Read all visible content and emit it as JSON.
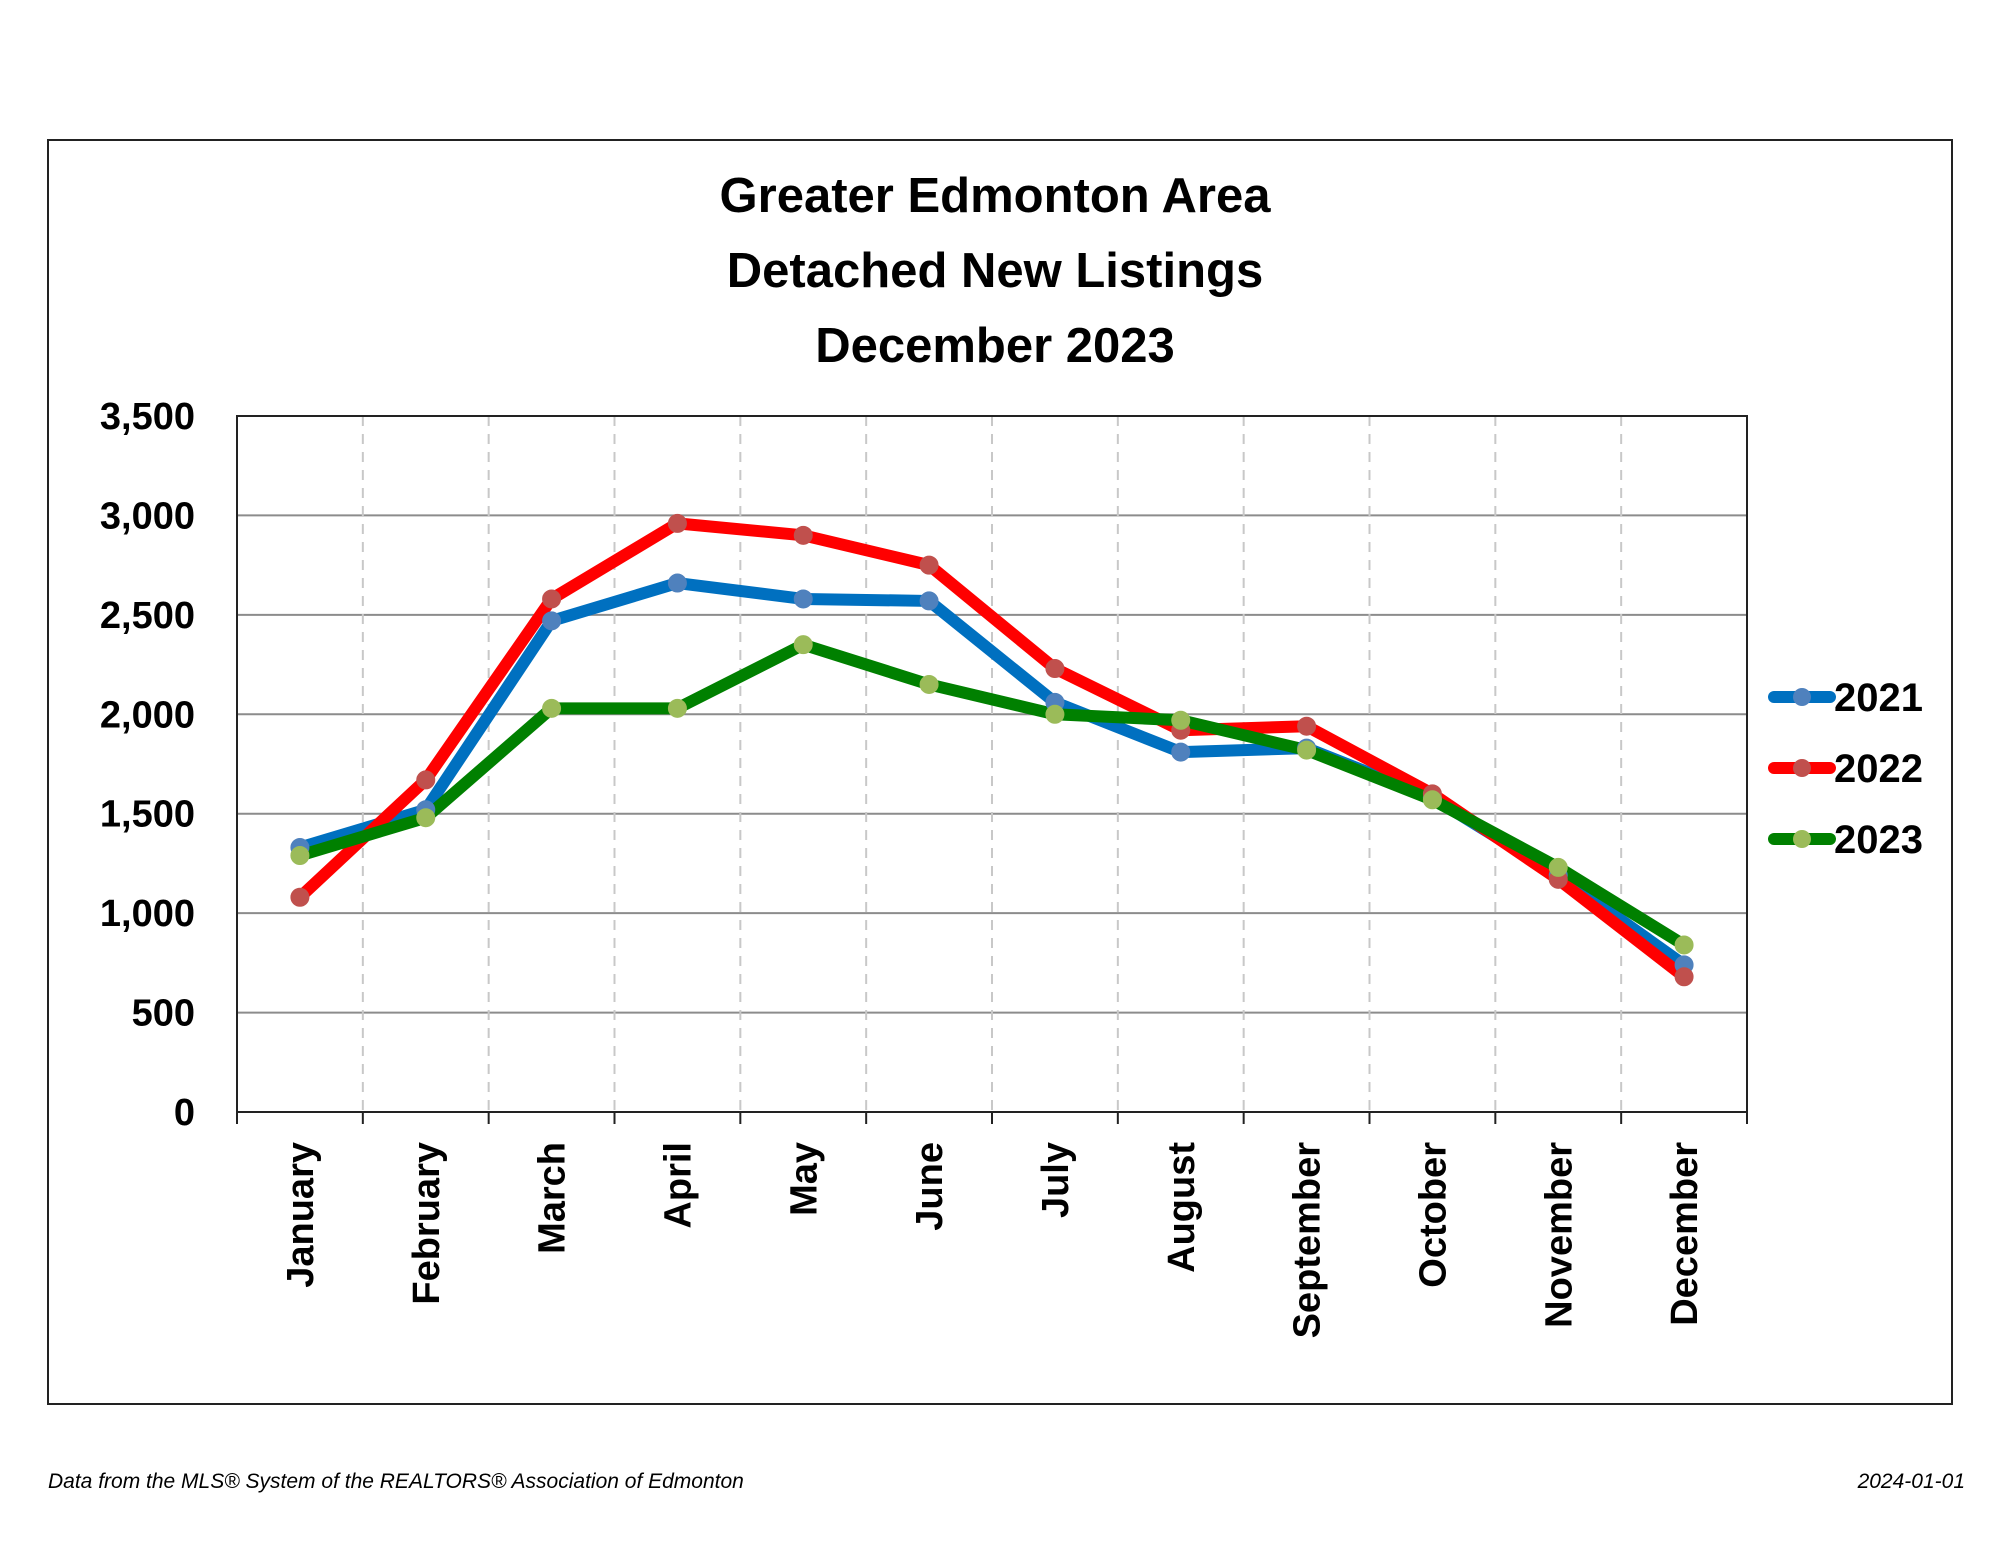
{
  "chart_data": {
    "type": "line",
    "title": "Greater Edmonton Area\nDetached New Listings\nDecember 2023",
    "title_lines": [
      "Greater Edmonton Area",
      "Detached New Listings",
      "December 2023"
    ],
    "categories": [
      "January",
      "February",
      "March",
      "April",
      "May",
      "June",
      "July",
      "August",
      "September",
      "October",
      "November",
      "December"
    ],
    "ylim": [
      0,
      3500
    ],
    "yticks": [
      0,
      500,
      1000,
      1500,
      2000,
      2500,
      3000,
      3500
    ],
    "ytick_labels": [
      "0",
      "500",
      "1,000",
      "1,500",
      "2,000",
      "2,500",
      "3,000",
      "3,500"
    ],
    "grid": true,
    "legend": "right",
    "series": [
      {
        "name": "2021",
        "color": "#0070C0",
        "marker_color": "#4F81BD",
        "values": [
          1330,
          1520,
          2470,
          2660,
          2580,
          2570,
          2060,
          1810,
          1830,
          1580,
          1190,
          740
        ]
      },
      {
        "name": "2022",
        "color": "#FF0000",
        "marker_color": "#C0504D",
        "values": [
          1080,
          1670,
          2580,
          2960,
          2900,
          2750,
          2230,
          1920,
          1940,
          1600,
          1170,
          680
        ]
      },
      {
        "name": "2023",
        "color": "#008000",
        "marker_color": "#9BBB59",
        "values": [
          1290,
          1480,
          2030,
          2030,
          2350,
          2150,
          2000,
          1970,
          1820,
          1570,
          1230,
          840
        ]
      }
    ]
  },
  "footer": {
    "source": "Data from the MLS® System of the REALTORS® Association of Edmonton",
    "date": "2024-01-01"
  }
}
